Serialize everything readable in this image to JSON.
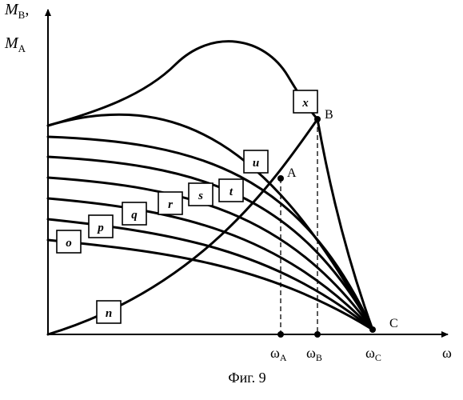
{
  "y_axis_label": {
    "line1_main": "M",
    "line1_sub": "B",
    "line1_suffix": ",",
    "line2_main": "M",
    "line2_sub": "A"
  },
  "x_axis_label": "ω",
  "curve_labels": {
    "n": "n",
    "o": "o",
    "p": "p",
    "q": "q",
    "r": "r",
    "s": "s",
    "t": "t",
    "u": "u",
    "x": "x"
  },
  "points": {
    "A": "A",
    "B": "B",
    "C": "C"
  },
  "ticks": {
    "wA": {
      "main": "ω",
      "sub": "A"
    },
    "wB": {
      "main": "ω",
      "sub": "B"
    },
    "wC": {
      "main": "ω",
      "sub": "C"
    }
  },
  "caption": "Фиг. 9"
}
